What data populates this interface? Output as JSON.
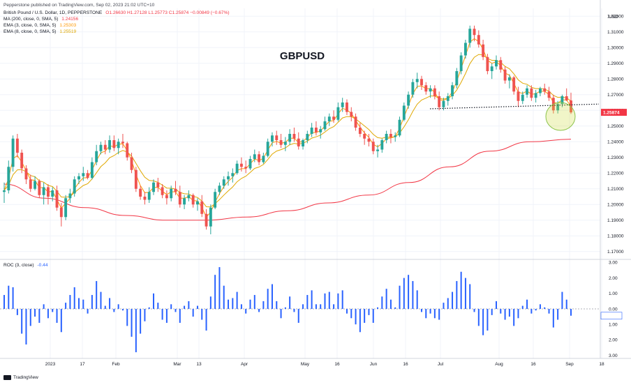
{
  "header": {
    "publisher_line": "Pepperstone published on TradingView.com, Sep 02, 2023 21:02 UTC+10",
    "symbol": "British Pound / U.S. Dollar, 1D, PEPPERSTONE",
    "ohlc": "O1.26630  H1.27128  L1.25773  C1.25874  −0.00849 (−0.67%)",
    "ma_label": "MA (200, close, 0, SMA, 5)",
    "ma_value": "1.24156",
    "ema3_label": "EMA (3, close, 0, SMA, 5)",
    "ema3_value": "1.25303",
    "ema8_label": "EMA (8, close, 0, SMA, 5)",
    "ema8_value": "1.25519",
    "roc_label": "ROC (3, close)",
    "roc_value": "-0.44"
  },
  "footer": {
    "brand": "TradingView"
  },
  "colors": {
    "up": "#26a69a",
    "down": "#ef5350",
    "ema3": "#ff9800",
    "ema8": "#e0a800",
    "ma200": "#f23645",
    "roc": "#2962ff",
    "grid": "#f0f3fa",
    "price_badge": "#f23645",
    "circle_fill": "rgba(205,220,57,0.28)",
    "circle_stroke": "#8bc34a"
  },
  "chart_data": [
    {
      "type": "candlestick",
      "title": "GBPUSD",
      "ylabel": "USD",
      "ylim": [
        1.165,
        1.325
      ],
      "yticks": [
        "1.32000",
        "1.31000",
        "1.30000",
        "1.29000",
        "1.28000",
        "1.27000",
        "1.26000",
        "1.25000",
        "1.24000",
        "1.23000",
        "1.22000",
        "1.21000",
        "1.20000",
        "1.19000",
        "1.18000",
        "1.17000"
      ],
      "last_price_label": "1.25874",
      "last_price": 1.25874,
      "xticks": [
        "2023",
        "17",
        "Feb",
        "Mar",
        "13",
        "Apr",
        "May",
        "16",
        "Jun",
        "16",
        "Jul",
        "Aug",
        "16",
        "Sep",
        "18"
      ],
      "series": [
        {
          "name": "GBPUSD",
          "ohlc": [
            [
              1.208,
              1.214,
              1.201,
              1.209
            ],
            [
              1.209,
              1.228,
              1.207,
              1.224
            ],
            [
              1.224,
              1.244,
              1.221,
              1.242
            ],
            [
              1.242,
              1.245,
              1.23,
              1.233
            ],
            [
              1.233,
              1.235,
              1.22,
              1.223
            ],
            [
              1.223,
              1.225,
              1.213,
              1.216
            ],
            [
              1.216,
              1.219,
              1.208,
              1.21
            ],
            [
              1.21,
              1.218,
              1.209,
              1.215
            ],
            [
              1.215,
              1.216,
              1.204,
              1.206
            ],
            [
              1.206,
              1.214,
              1.2,
              1.211
            ],
            [
              1.211,
              1.213,
              1.2,
              1.205
            ],
            [
              1.205,
              1.211,
              1.202,
              1.209
            ],
            [
              1.209,
              1.212,
              1.196,
              1.198
            ],
            [
              1.198,
              1.201,
              1.186,
              1.192
            ],
            [
              1.192,
              1.206,
              1.19,
              1.204
            ],
            [
              1.204,
              1.21,
              1.201,
              1.207
            ],
            [
              1.207,
              1.218,
              1.205,
              1.216
            ],
            [
              1.216,
              1.22,
              1.213,
              1.218
            ],
            [
              1.218,
              1.224,
              1.215,
              1.22
            ],
            [
              1.22,
              1.222,
              1.216,
              1.217
            ],
            [
              1.217,
              1.23,
              1.216,
              1.227
            ],
            [
              1.227,
              1.238,
              1.225,
              1.234
            ],
            [
              1.234,
              1.24,
              1.232,
              1.238
            ],
            [
              1.238,
              1.241,
              1.232,
              1.235
            ],
            [
              1.235,
              1.244,
              1.233,
              1.241
            ],
            [
              1.241,
              1.244,
              1.234,
              1.236
            ],
            [
              1.236,
              1.242,
              1.232,
              1.24
            ],
            [
              1.24,
              1.245,
              1.236,
              1.239
            ],
            [
              1.239,
              1.24,
              1.228,
              1.23
            ],
            [
              1.23,
              1.233,
              1.22,
              1.222
            ],
            [
              1.222,
              1.224,
              1.208,
              1.21
            ],
            [
              1.21,
              1.212,
              1.203,
              1.205
            ],
            [
              1.205,
              1.208,
              1.2,
              1.203
            ],
            [
              1.203,
              1.211,
              1.201,
              1.208
            ],
            [
              1.208,
              1.216,
              1.206,
              1.214
            ],
            [
              1.214,
              1.217,
              1.208,
              1.211
            ],
            [
              1.211,
              1.213,
              1.204,
              1.206
            ],
            [
              1.206,
              1.209,
              1.2,
              1.204
            ],
            [
              1.204,
              1.212,
              1.202,
              1.21
            ],
            [
              1.21,
              1.215,
              1.206,
              1.208
            ],
            [
              1.208,
              1.212,
              1.198,
              1.2
            ],
            [
              1.2,
              1.206,
              1.197,
              1.204
            ],
            [
              1.204,
              1.209,
              1.202,
              1.206
            ],
            [
              1.206,
              1.207,
              1.198,
              1.2
            ],
            [
              1.2,
              1.204,
              1.196,
              1.202
            ],
            [
              1.202,
              1.206,
              1.192,
              1.194
            ],
            [
              1.194,
              1.197,
              1.184,
              1.186
            ],
            [
              1.186,
              1.2,
              1.181,
              1.198
            ],
            [
              1.198,
              1.21,
              1.197,
              1.208
            ],
            [
              1.208,
              1.214,
              1.206,
              1.212
            ],
            [
              1.212,
              1.218,
              1.21,
              1.216
            ],
            [
              1.216,
              1.221,
              1.212,
              1.218
            ],
            [
              1.218,
              1.223,
              1.214,
              1.22
            ],
            [
              1.22,
              1.228,
              1.219,
              1.226
            ],
            [
              1.226,
              1.23,
              1.221,
              1.224
            ],
            [
              1.224,
              1.228,
              1.22,
              1.223
            ],
            [
              1.223,
              1.231,
              1.222,
              1.229
            ],
            [
              1.229,
              1.235,
              1.227,
              1.232
            ],
            [
              1.232,
              1.234,
              1.225,
              1.227
            ],
            [
              1.227,
              1.233,
              1.226,
              1.231
            ],
            [
              1.231,
              1.242,
              1.23,
              1.24
            ],
            [
              1.24,
              1.246,
              1.237,
              1.244
            ],
            [
              1.244,
              1.247,
              1.238,
              1.241
            ],
            [
              1.241,
              1.245,
              1.236,
              1.238
            ],
            [
              1.238,
              1.243,
              1.234,
              1.24
            ],
            [
              1.24,
              1.248,
              1.238,
              1.245
            ],
            [
              1.245,
              1.249,
              1.24,
              1.242
            ],
            [
              1.242,
              1.246,
              1.235,
              1.237
            ],
            [
              1.237,
              1.242,
              1.235,
              1.241
            ],
            [
              1.241,
              1.247,
              1.239,
              1.245
            ],
            [
              1.245,
              1.252,
              1.243,
              1.249
            ],
            [
              1.249,
              1.253,
              1.244,
              1.246
            ],
            [
              1.246,
              1.25,
              1.242,
              1.248
            ],
            [
              1.248,
              1.256,
              1.247,
              1.253
            ],
            [
              1.253,
              1.258,
              1.25,
              1.256
            ],
            [
              1.256,
              1.26,
              1.252,
              1.254
            ],
            [
              1.254,
              1.265,
              1.253,
              1.262
            ],
            [
              1.262,
              1.268,
              1.259,
              1.265
            ],
            [
              1.265,
              1.267,
              1.257,
              1.259
            ],
            [
              1.259,
              1.262,
              1.253,
              1.256
            ],
            [
              1.256,
              1.258,
              1.247,
              1.249
            ],
            [
              1.249,
              1.252,
              1.243,
              1.245
            ],
            [
              1.245,
              1.247,
              1.238,
              1.242
            ],
            [
              1.242,
              1.245,
              1.237,
              1.24
            ],
            [
              1.24,
              1.242,
              1.232,
              1.234
            ],
            [
              1.234,
              1.238,
              1.23,
              1.235
            ],
            [
              1.235,
              1.242,
              1.233,
              1.241
            ],
            [
              1.241,
              1.247,
              1.239,
              1.245
            ],
            [
              1.245,
              1.248,
              1.239,
              1.243
            ],
            [
              1.243,
              1.246,
              1.24,
              1.244
            ],
            [
              1.244,
              1.256,
              1.243,
              1.254
            ],
            [
              1.254,
              1.265,
              1.253,
              1.263
            ],
            [
              1.263,
              1.272,
              1.261,
              1.27
            ],
            [
              1.27,
              1.28,
              1.268,
              1.278
            ],
            [
              1.278,
              1.284,
              1.274,
              1.28
            ],
            [
              1.28,
              1.282,
              1.273,
              1.276
            ],
            [
              1.276,
              1.278,
              1.27,
              1.272
            ],
            [
              1.272,
              1.276,
              1.268,
              1.274
            ],
            [
              1.274,
              1.276,
              1.267,
              1.269
            ],
            [
              1.269,
              1.272,
              1.26,
              1.262
            ],
            [
              1.262,
              1.268,
              1.26,
              1.266
            ],
            [
              1.266,
              1.271,
              1.263,
              1.269
            ],
            [
              1.269,
              1.278,
              1.267,
              1.276
            ],
            [
              1.276,
              1.287,
              1.274,
              1.285
            ],
            [
              1.285,
              1.297,
              1.283,
              1.295
            ],
            [
              1.295,
              1.305,
              1.293,
              1.303
            ],
            [
              1.303,
              1.314,
              1.3,
              1.312
            ],
            [
              1.312,
              1.314,
              1.304,
              1.308
            ],
            [
              1.308,
              1.311,
              1.3,
              1.302
            ],
            [
              1.302,
              1.305,
              1.292,
              1.294
            ],
            [
              1.294,
              1.296,
              1.283,
              1.285
            ],
            [
              1.285,
              1.29,
              1.28,
              1.288
            ],
            [
              1.288,
              1.295,
              1.286,
              1.292
            ],
            [
              1.292,
              1.294,
              1.284,
              1.286
            ],
            [
              1.286,
              1.288,
              1.277,
              1.279
            ],
            [
              1.279,
              1.283,
              1.274,
              1.281
            ],
            [
              1.281,
              1.282,
              1.27,
              1.272
            ],
            [
              1.272,
              1.275,
              1.262,
              1.266
            ],
            [
              1.266,
              1.272,
              1.264,
              1.27
            ],
            [
              1.27,
              1.276,
              1.268,
              1.274
            ],
            [
              1.274,
              1.276,
              1.266,
              1.268
            ],
            [
              1.268,
              1.273,
              1.265,
              1.271
            ],
            [
              1.271,
              1.275,
              1.269,
              1.274
            ],
            [
              1.274,
              1.277,
              1.27,
              1.272
            ],
            [
              1.272,
              1.275,
              1.266,
              1.268
            ],
            [
              1.268,
              1.27,
              1.258,
              1.26
            ],
            [
              1.26,
              1.266,
              1.258,
              1.264
            ],
            [
              1.264,
              1.27,
              1.262,
              1.269
            ],
            [
              1.269,
              1.274,
              1.266,
              1.2663
            ],
            [
              1.2663,
              1.2713,
              1.2577,
              1.2587
            ]
          ]
        },
        {
          "name": "MA (200, close, 0, SMA, 5)",
          "values": [
            1.213,
            1.204,
            1.198,
            1.193,
            1.19,
            1.19,
            1.192,
            1.196,
            1.201,
            1.206,
            1.214,
            1.224,
            1.234,
            1.24,
            1.2416
          ]
        },
        {
          "name": "EMA (3, close, 0, SMA, 5)",
          "values": []
        },
        {
          "name": "EMA (8, close, 0, SMA, 5)",
          "values": []
        }
      ],
      "support_line": {
        "start": 1.261,
        "end": 1.264
      },
      "annotation": "highlight circle around last candles"
    },
    {
      "type": "bar",
      "title": "ROC (3, close)",
      "ylim": [
        -3.2,
        3.2
      ],
      "yticks": [
        "3.00",
        "2.00",
        "1.00",
        "0.00",
        "1.00",
        "2.00",
        "3.00"
      ],
      "baseline": 0,
      "last_value": -0.44,
      "values": [
        0.9,
        1.5,
        1.4,
        -0.4,
        -1.6,
        -2.3,
        -1.1,
        -0.5,
        -0.9,
        0.3,
        -0.6,
        -0.2,
        -0.9,
        -1.5,
        0.4,
        0.9,
        1.4,
        0.7,
        0.6,
        -0.3,
        0.9,
        1.8,
        1.1,
        0.2,
        0.7,
        -0.2,
        0.3,
        -0.1,
        -1.1,
        -1.8,
        -2.8,
        -1.6,
        -0.8,
        0.1,
        1.0,
        0.4,
        -0.7,
        -0.9,
        0.3,
        -0.2,
        -0.9,
        0.2,
        0.5,
        -0.5,
        0.2,
        -0.7,
        -1.4,
        0.8,
        2.2,
        2.7,
        1.5,
        0.6,
        0.7,
        1.1,
        0.3,
        -0.3,
        0.6,
        0.9,
        -0.2,
        0.5,
        1.3,
        1.6,
        0.5,
        -0.6,
        0.1,
        0.8,
        -0.2,
        -0.9,
        0.3,
        0.9,
        1.2,
        0.3,
        0.3,
        1.0,
        1.1,
        0.3,
        1.0,
        1.2,
        -0.3,
        -0.6,
        -1.0,
        -1.5,
        -0.9,
        -0.4,
        -0.9,
        0.1,
        0.8,
        1.3,
        0.6,
        0.1,
        1.5,
        2.0,
        2.2,
        1.8,
        1.2,
        -0.2,
        -0.6,
        -0.3,
        -0.6,
        -0.7,
        0.4,
        0.7,
        1.1,
        1.8,
        2.4,
        2.0,
        1.6,
        -0.2,
        -1.1,
        -1.7,
        -1.4,
        -0.4,
        0.5,
        -0.3,
        -0.7,
        -0.5,
        -1.1,
        -0.6,
        0.2,
        0.6,
        -0.3,
        -0.1,
        0.3,
        0.1,
        -0.3,
        -1.2,
        -0.7,
        1.1,
        0.6,
        -0.44
      ]
    }
  ]
}
